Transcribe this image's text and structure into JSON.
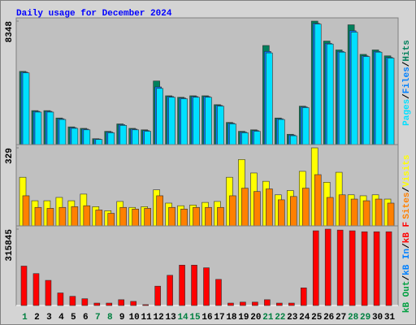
{
  "title": "Daily usage for December 2024",
  "legend_separator": "/",
  "chart_data": [
    {
      "type": "bar",
      "ylim": [
        0,
        8348
      ],
      "yticks": [
        8348
      ],
      "series": [
        {
          "name": "Hits",
          "color": "#00805c",
          "values": [
            4950,
            2300,
            2300,
            1800,
            1200,
            1100,
            400,
            900,
            1400,
            1100,
            1000,
            4300,
            3300,
            3200,
            3300,
            3300,
            2700,
            1500,
            900,
            1000,
            6700,
            1800,
            700,
            2600,
            8348,
            7000,
            6400,
            8100,
            6100,
            6400,
            6000
          ]
        },
        {
          "name": "Files",
          "color": "#0080ff",
          "values": [
            4900,
            2250,
            2250,
            1750,
            1150,
            1050,
            380,
            850,
            1350,
            1050,
            950,
            3900,
            3250,
            3150,
            3250,
            3250,
            2650,
            1450,
            850,
            950,
            6300,
            1750,
            650,
            2550,
            8200,
            6850,
            6300,
            7700,
            6000,
            6300,
            5900
          ]
        },
        {
          "name": "Pages",
          "color": "#00e0ff",
          "values": [
            4850,
            2200,
            2200,
            1700,
            1100,
            1000,
            350,
            800,
            1300,
            1000,
            900,
            3800,
            3200,
            3100,
            3200,
            3200,
            2600,
            1400,
            800,
            900,
            6200,
            1700,
            600,
            2500,
            8150,
            6800,
            6250,
            7600,
            5950,
            6250,
            5850
          ]
        }
      ]
    },
    {
      "type": "bar",
      "ylim": [
        0,
        329
      ],
      "yticks": [
        329
      ],
      "series": [
        {
          "name": "Visits",
          "color": "#ffff00",
          "values": [
            205,
            106,
            106,
            120,
            106,
            134,
            81,
            64,
            103,
            78,
            81,
            152,
            96,
            85,
            88,
            99,
            103,
            205,
            280,
            223,
            188,
            131,
            149,
            230,
            329,
            184,
            226,
            131,
            127,
            131,
            113
          ]
        },
        {
          "name": "Sites",
          "color": "#ff8000",
          "values": [
            127,
            78,
            74,
            78,
            81,
            85,
            67,
            53,
            78,
            71,
            74,
            127,
            78,
            71,
            78,
            78,
            78,
            127,
            159,
            145,
            156,
            110,
            124,
            159,
            216,
            120,
            131,
            113,
            106,
            113,
            96
          ]
        }
      ]
    },
    {
      "type": "bar",
      "ylim": [
        0,
        315845
      ],
      "yticks": [
        315845
      ],
      "categories": [
        "1",
        "2",
        "3",
        "4",
        "5",
        "6",
        "7",
        "8",
        "9",
        "10",
        "11",
        "12",
        "13",
        "14",
        "15",
        "16",
        "17",
        "18",
        "19",
        "20",
        "21",
        "22",
        "23",
        "24",
        "25",
        "26",
        "27",
        "28",
        "29",
        "30",
        "31"
      ],
      "category_colors": [
        "#008040",
        "#000000",
        "#000000",
        "#000000",
        "#000000",
        "#000000",
        "#008040",
        "#008040",
        "#000000",
        "#000000",
        "#000000",
        "#000000",
        "#000000",
        "#008040",
        "#008040",
        "#000000",
        "#000000",
        "#000000",
        "#000000",
        "#000000",
        "#008040",
        "#008040",
        "#000000",
        "#000000",
        "#000000",
        "#000000",
        "#000000",
        "#008040",
        "#008040",
        "#000000",
        "#000000"
      ],
      "series": [
        {
          "name": "kB F",
          "color": "#ff0000",
          "values": [
            163000,
            132000,
            104000,
            52000,
            38000,
            28000,
            10000,
            10000,
            24000,
            17000,
            3500,
            80000,
            125000,
            167000,
            167000,
            156000,
            108000,
            10000,
            14000,
            14000,
            24000,
            10000,
            10000,
            73000,
            309000,
            315845,
            312000,
            309000,
            305000,
            305000,
            305000
          ]
        },
        {
          "name": "kB In",
          "color": "#0080ff",
          "values": [
            0,
            0,
            0,
            0,
            0,
            0,
            0,
            0,
            0,
            0,
            0,
            0,
            0,
            0,
            0,
            0,
            0,
            0,
            0,
            0,
            0,
            0,
            0,
            0,
            0,
            0,
            0,
            0,
            0,
            0,
            0
          ]
        },
        {
          "name": "kB Out",
          "color": "#00a040",
          "values": [
            0,
            0,
            0,
            0,
            0,
            0,
            0,
            0,
            0,
            0,
            0,
            0,
            0,
            0,
            0,
            0,
            0,
            0,
            0,
            0,
            0,
            0,
            0,
            0,
            0,
            0,
            0,
            0,
            0,
            0,
            0
          ]
        }
      ]
    }
  ]
}
